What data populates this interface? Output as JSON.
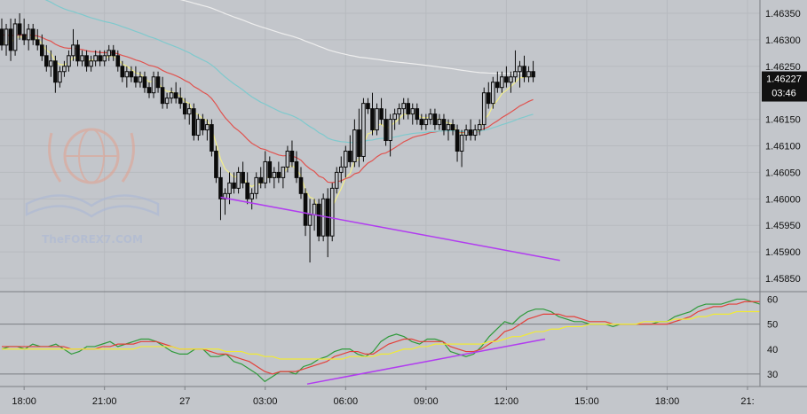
{
  "colors": {
    "background": "#c3c6cb",
    "grid": "#b7babf",
    "divider": "#7b7e83",
    "candle": "#0b0b0b",
    "ema_fast": "#f2ee8a",
    "ema_red": "#e0534f",
    "ema_teal": "#7fc9cd",
    "ema_white": "#eeeeee",
    "trendline": "#b13cf0",
    "stoch_green": "#2e9a3a",
    "stoch_red": "#e3403a",
    "stoch_yellow": "#f1ea35",
    "price_badge": "#111111",
    "price_badge_text": "#ffffff",
    "watermark_red": "#e3a08e",
    "watermark_blue": "#a9b7d6"
  },
  "watermark": {
    "text": "TheFOREX7.COM"
  },
  "chart_data": [
    {
      "type": "candlestick",
      "panel": "price",
      "ylim": [
        1.45825,
        1.46375
      ],
      "y_ticks": [
        1.4585,
        1.459,
        1.4595,
        1.46,
        1.4605,
        1.461,
        1.4615,
        1.462,
        1.4625,
        1.463,
        1.4635
      ],
      "y_tick_labels": [
        "1.45850",
        "1.45900",
        "1.45950",
        "1.46000",
        "1.46050",
        "1.46100",
        "1.46150",
        "",
        "1.46250",
        "1.46300",
        "1.46350"
      ],
      "x_ticks": [
        {
          "bar": 5,
          "label": "18:00"
        },
        {
          "bar": 23,
          "label": "21:00"
        },
        {
          "bar": 41,
          "label": "27"
        },
        {
          "bar": 59,
          "label": "03:00"
        },
        {
          "bar": 77,
          "label": "06:00"
        },
        {
          "bar": 95,
          "label": "09:00"
        },
        {
          "bar": 113,
          "label": "12:00"
        },
        {
          "bar": 131,
          "label": "15:00"
        },
        {
          "bar": 149,
          "label": "18:00"
        },
        {
          "bar": 167,
          "label": "21:"
        }
      ],
      "current_price": {
        "value": 1.46227,
        "label": "1.46227",
        "countdown": "03:46"
      },
      "ohlc": [
        [
          1.4632,
          1.4634,
          1.4628,
          1.4629
        ],
        [
          1.4629,
          1.4633,
          1.4627,
          1.4632
        ],
        [
          1.4632,
          1.4634,
          1.4626,
          1.4628
        ],
        [
          1.4628,
          1.4634,
          1.4627,
          1.4633
        ],
        [
          1.4633,
          1.4635,
          1.463,
          1.4631
        ],
        [
          1.4631,
          1.4634,
          1.4629,
          1.463
        ],
        [
          1.463,
          1.4633,
          1.4628,
          1.4632
        ],
        [
          1.4632,
          1.4633,
          1.4629,
          1.463
        ],
        [
          1.463,
          1.4632,
          1.4628,
          1.4629
        ],
        [
          1.4629,
          1.4631,
          1.4626,
          1.4627
        ],
        [
          1.4627,
          1.4629,
          1.4624,
          1.4625
        ],
        [
          1.4625,
          1.4628,
          1.4623,
          1.4626
        ],
        [
          1.4626,
          1.4627,
          1.462,
          1.4622
        ],
        [
          1.4622,
          1.4625,
          1.4621,
          1.4624
        ],
        [
          1.4624,
          1.4626,
          1.4623,
          1.4625
        ],
        [
          1.4625,
          1.4628,
          1.4624,
          1.4627
        ],
        [
          1.4627,
          1.4632,
          1.4626,
          1.4629
        ],
        [
          1.4629,
          1.463,
          1.4625,
          1.4626
        ],
        [
          1.4626,
          1.4628,
          1.4625,
          1.4627
        ],
        [
          1.4627,
          1.4628,
          1.4624,
          1.4625
        ],
        [
          1.4625,
          1.4627,
          1.4624,
          1.4626
        ],
        [
          1.4626,
          1.4628,
          1.4625,
          1.4627
        ],
        [
          1.4627,
          1.4628,
          1.4625,
          1.4626
        ],
        [
          1.4626,
          1.4628,
          1.4625,
          1.4627
        ],
        [
          1.4627,
          1.4629,
          1.4626,
          1.4628
        ],
        [
          1.4628,
          1.4629,
          1.4626,
          1.4627
        ],
        [
          1.4627,
          1.4628,
          1.4624,
          1.4625
        ],
        [
          1.4625,
          1.4626,
          1.4622,
          1.4623
        ],
        [
          1.4623,
          1.4625,
          1.4621,
          1.4624
        ],
        [
          1.4624,
          1.4625,
          1.4622,
          1.4623
        ],
        [
          1.4623,
          1.4625,
          1.4621,
          1.4622
        ],
        [
          1.4622,
          1.4624,
          1.4621,
          1.4623
        ],
        [
          1.4623,
          1.4624,
          1.462,
          1.4621
        ],
        [
          1.4621,
          1.4622,
          1.4619,
          1.462
        ],
        [
          1.462,
          1.4624,
          1.4619,
          1.4623
        ],
        [
          1.4623,
          1.4624,
          1.462,
          1.4621
        ],
        [
          1.4621,
          1.4623,
          1.4617,
          1.4618
        ],
        [
          1.4618,
          1.462,
          1.4617,
          1.4619
        ],
        [
          1.4619,
          1.4621,
          1.4618,
          1.462
        ],
        [
          1.462,
          1.4622,
          1.4618,
          1.4619
        ],
        [
          1.4619,
          1.4621,
          1.4617,
          1.4618
        ],
        [
          1.4618,
          1.4619,
          1.4615,
          1.4616
        ],
        [
          1.4616,
          1.4618,
          1.4614,
          1.4617
        ],
        [
          1.4617,
          1.4618,
          1.4611,
          1.4612
        ],
        [
          1.4612,
          1.4616,
          1.4611,
          1.4615
        ],
        [
          1.4615,
          1.4616,
          1.4612,
          1.4613
        ],
        [
          1.4613,
          1.4615,
          1.4611,
          1.4614
        ],
        [
          1.4614,
          1.4615,
          1.4608,
          1.4609
        ],
        [
          1.4609,
          1.461,
          1.4603,
          1.4604
        ],
        [
          1.4604,
          1.4606,
          1.4596,
          1.46
        ],
        [
          1.46,
          1.4602,
          1.4597,
          1.4601
        ],
        [
          1.4601,
          1.4605,
          1.4599,
          1.4603
        ],
        [
          1.4603,
          1.4605,
          1.4601,
          1.4602
        ],
        [
          1.4602,
          1.4606,
          1.4601,
          1.4605
        ],
        [
          1.4605,
          1.4607,
          1.4602,
          1.4603
        ],
        [
          1.4603,
          1.4605,
          1.4599,
          1.46
        ],
        [
          1.46,
          1.4602,
          1.4598,
          1.4601
        ],
        [
          1.4601,
          1.4605,
          1.46,
          1.4604
        ],
        [
          1.4604,
          1.4606,
          1.4602,
          1.4603
        ],
        [
          1.4603,
          1.4609,
          1.4602,
          1.4607
        ],
        [
          1.4607,
          1.4608,
          1.4603,
          1.4604
        ],
        [
          1.4604,
          1.4606,
          1.4602,
          1.4605
        ],
        [
          1.4605,
          1.4607,
          1.4603,
          1.4604
        ],
        [
          1.4604,
          1.4606,
          1.4602,
          1.4606
        ],
        [
          1.4606,
          1.461,
          1.4605,
          1.4609
        ],
        [
          1.4609,
          1.4611,
          1.4606,
          1.4607
        ],
        [
          1.4607,
          1.4609,
          1.4603,
          1.4604
        ],
        [
          1.4604,
          1.4606,
          1.46,
          1.4601
        ],
        [
          1.4601,
          1.4602,
          1.4593,
          1.4595
        ],
        [
          1.4595,
          1.46,
          1.4588,
          1.4597
        ],
        [
          1.4597,
          1.46,
          1.4594,
          1.4599
        ],
        [
          1.4599,
          1.46,
          1.4592,
          1.4593
        ],
        [
          1.4593,
          1.4601,
          1.4592,
          1.46
        ],
        [
          1.46,
          1.4602,
          1.4589,
          1.4593
        ],
        [
          1.4593,
          1.4603,
          1.4592,
          1.4602
        ],
        [
          1.4602,
          1.4606,
          1.4601,
          1.4605
        ],
        [
          1.4605,
          1.4608,
          1.4603,
          1.4606
        ],
        [
          1.4606,
          1.461,
          1.4604,
          1.4609
        ],
        [
          1.4609,
          1.4612,
          1.4606,
          1.4607
        ],
        [
          1.4607,
          1.4615,
          1.4606,
          1.4613
        ],
        [
          1.4613,
          1.4617,
          1.4606,
          1.4608
        ],
        [
          1.4608,
          1.4619,
          1.4607,
          1.4618
        ],
        [
          1.4618,
          1.4619,
          1.4616,
          1.4617
        ],
        [
          1.4617,
          1.462,
          1.4612,
          1.4613
        ],
        [
          1.4613,
          1.4618,
          1.4612,
          1.4617
        ],
        [
          1.4617,
          1.4619,
          1.4614,
          1.4615
        ],
        [
          1.4615,
          1.4617,
          1.461,
          1.4611
        ],
        [
          1.4611,
          1.4616,
          1.4608,
          1.4615
        ],
        [
          1.4615,
          1.4617,
          1.4613,
          1.4616
        ],
        [
          1.4616,
          1.4618,
          1.4614,
          1.4617
        ],
        [
          1.4617,
          1.4619,
          1.4615,
          1.4618
        ],
        [
          1.4618,
          1.4619,
          1.4615,
          1.4616
        ],
        [
          1.4616,
          1.4618,
          1.4614,
          1.4617
        ],
        [
          1.4617,
          1.4618,
          1.4614,
          1.4615
        ],
        [
          1.4615,
          1.4616,
          1.4613,
          1.4614
        ],
        [
          1.4614,
          1.4616,
          1.4613,
          1.4615
        ],
        [
          1.4615,
          1.4617,
          1.4614,
          1.4616
        ],
        [
          1.4616,
          1.4617,
          1.4613,
          1.4614
        ],
        [
          1.4614,
          1.4616,
          1.4613,
          1.4615
        ],
        [
          1.4615,
          1.4616,
          1.4612,
          1.4613
        ],
        [
          1.4613,
          1.4615,
          1.4611,
          1.4614
        ],
        [
          1.4614,
          1.4615,
          1.4612,
          1.4613
        ],
        [
          1.4613,
          1.4614,
          1.4607,
          1.4609
        ],
        [
          1.4609,
          1.4613,
          1.4606,
          1.4612
        ],
        [
          1.4612,
          1.4614,
          1.4611,
          1.4613
        ],
        [
          1.4613,
          1.4615,
          1.4611,
          1.4612
        ],
        [
          1.4612,
          1.4614,
          1.4611,
          1.4613
        ],
        [
          1.4613,
          1.4615,
          1.4612,
          1.4614
        ],
        [
          1.4614,
          1.4621,
          1.4613,
          1.462
        ],
        [
          1.462,
          1.4622,
          1.4617,
          1.4618
        ],
        [
          1.4618,
          1.4623,
          1.4617,
          1.4622
        ],
        [
          1.4622,
          1.4624,
          1.462,
          1.4621
        ],
        [
          1.4621,
          1.4624,
          1.462,
          1.4623
        ],
        [
          1.4623,
          1.4625,
          1.4621,
          1.4622
        ],
        [
          1.4622,
          1.4624,
          1.462,
          1.4623
        ],
        [
          1.4623,
          1.4628,
          1.4622,
          1.4624
        ],
        [
          1.4624,
          1.4626,
          1.4621,
          1.4625
        ],
        [
          1.4625,
          1.4627,
          1.4622,
          1.4623
        ],
        [
          1.4623,
          1.4625,
          1.4622,
          1.4624
        ],
        [
          1.4624,
          1.4626,
          1.4622,
          1.4623
        ]
      ]
    },
    {
      "type": "line",
      "panel": "stochastic",
      "ylim": [
        25,
        63
      ],
      "y_ticks": [
        30,
        40,
        50,
        60
      ],
      "levels": [
        30,
        50
      ],
      "series": [
        {
          "values": [
            40,
            41,
            41,
            40,
            42,
            41,
            41,
            42,
            40,
            38,
            39,
            41,
            41,
            42,
            43,
            41,
            42,
            43,
            44,
            44,
            43,
            41,
            39,
            38,
            38,
            40,
            40,
            37,
            37,
            38,
            35,
            34,
            32,
            30,
            27,
            29,
            31,
            31,
            30,
            33,
            34,
            36,
            37,
            39,
            40,
            40,
            38,
            37,
            39,
            43,
            45,
            46,
            45,
            43,
            42,
            44,
            44,
            43,
            39,
            38,
            37,
            38,
            41,
            45,
            48,
            51,
            50,
            53,
            55,
            56,
            56,
            55,
            53,
            52,
            51,
            51,
            50,
            50,
            50,
            49,
            50,
            50,
            50,
            50,
            50,
            51,
            51,
            53,
            54,
            55,
            57,
            58,
            58,
            58,
            59,
            60,
            60,
            59,
            58
          ]
        },
        {
          "values": [
            41,
            41,
            41,
            41,
            41,
            41,
            41,
            41,
            41,
            40,
            40,
            40,
            40,
            41,
            41,
            42,
            42,
            42,
            43,
            43,
            43,
            42,
            41,
            40,
            40,
            40,
            40,
            39,
            38,
            38,
            37,
            36,
            35,
            33,
            31,
            30,
            31,
            31,
            31,
            32,
            33,
            34,
            35,
            37,
            38,
            39,
            39,
            38,
            38,
            40,
            42,
            43,
            44,
            44,
            43,
            43,
            43,
            43,
            41,
            40,
            39,
            39,
            40,
            42,
            44,
            47,
            48,
            50,
            52,
            53,
            54,
            54,
            54,
            53,
            53,
            52,
            51,
            51,
            51,
            50,
            50,
            50,
            50,
            50,
            50,
            50,
            50,
            51,
            52,
            53,
            55,
            56,
            57,
            57,
            58,
            58,
            59,
            59,
            59
          ]
        },
        {
          "values": [
            40,
            40,
            40,
            40,
            40,
            40,
            40,
            40,
            40,
            40,
            40,
            40,
            40,
            40,
            40,
            40,
            40,
            40,
            41,
            41,
            41,
            41,
            41,
            40,
            40,
            40,
            40,
            40,
            40,
            39,
            39,
            39,
            38,
            38,
            37,
            37,
            36,
            36,
            36,
            36,
            36,
            36,
            36,
            36,
            36,
            37,
            37,
            37,
            37,
            38,
            38,
            39,
            40,
            40,
            41,
            41,
            42,
            42,
            42,
            42,
            42,
            42,
            42,
            43,
            43,
            44,
            45,
            45,
            46,
            47,
            47,
            48,
            48,
            49,
            49,
            49,
            50,
            50,
            50,
            50,
            50,
            50,
            50,
            51,
            51,
            51,
            51,
            52,
            52,
            52,
            53,
            53,
            54,
            54,
            54,
            55,
            55,
            55,
            55
          ]
        }
      ]
    }
  ]
}
